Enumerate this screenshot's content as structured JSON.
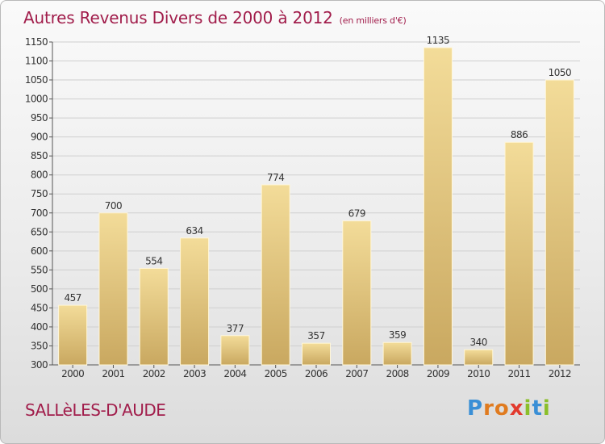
{
  "header": {
    "title": "Autres Revenus Divers de 2000 à 2012",
    "subtitle": "(en milliers d'€)"
  },
  "footer": {
    "location": "SALLèLES-D'AUDE",
    "brand": "Proxiti",
    "brand_letters": [
      {
        "ch": "P",
        "color": "#3a8fd6"
      },
      {
        "ch": "r",
        "color": "#e07b1f"
      },
      {
        "ch": "o",
        "color": "#e07b1f"
      },
      {
        "ch": "x",
        "color": "#e23a2e"
      },
      {
        "ch": "i",
        "color": "#8bbf2a"
      },
      {
        "ch": "t",
        "color": "#3a8fd6"
      },
      {
        "ch": "i",
        "color": "#8bbf2a"
      }
    ]
  },
  "colors": {
    "bar_light": "#f3dc99",
    "bar_dark": "#c9a860",
    "title": "#a11d4b",
    "grid": "#cfcfcf"
  },
  "chart_data": {
    "type": "bar",
    "title": "Autres Revenus Divers de 2000 à 2012",
    "subtitle": "(en milliers d'€)",
    "categories": [
      "2000",
      "2001",
      "2002",
      "2003",
      "2004",
      "2005",
      "2006",
      "2007",
      "2008",
      "2009",
      "2010",
      "2011",
      "2012"
    ],
    "values": [
      457,
      700,
      554,
      634,
      377,
      774,
      357,
      679,
      359,
      1135,
      340,
      886,
      1050
    ],
    "ylim": [
      300,
      1150
    ],
    "ytick_step": 50,
    "grid": true,
    "xlabel": "",
    "ylabel": ""
  }
}
